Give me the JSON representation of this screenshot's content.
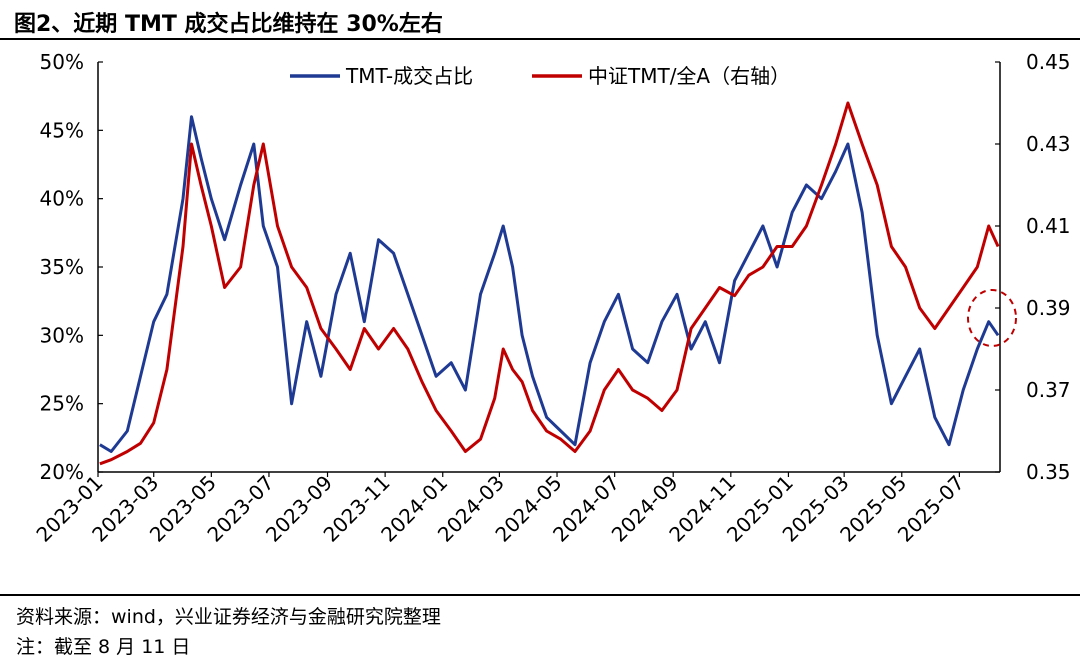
{
  "header": {
    "title": "图2、近期 TMT 成交占比维持在 30%左右"
  },
  "footer": {
    "source": "资料来源：wind，兴业证券经济与金融研究院整理",
    "note": "注：截至 8 月 11 日"
  },
  "colors": {
    "series1": "#1f3a93",
    "series2": "#c00000",
    "axis": "#000000"
  },
  "chart_data": {
    "type": "line",
    "title": "近期 TMT 成交占比维持在 30%左右",
    "legend_position": "top-center",
    "annotation": "dashed red ellipse marking recent TMT share near 30%",
    "x_tick_labels": [
      "2023-01",
      "2023-03",
      "2023-05",
      "2023-07",
      "2023-09",
      "2023-11",
      "2024-01",
      "2024-03",
      "2024-05",
      "2024-07",
      "2024-09",
      "2024-11",
      "2025-01",
      "2025-03",
      "2025-05",
      "2025-07"
    ],
    "y_left": {
      "ticks": [
        "20%",
        "25%",
        "30%",
        "35%",
        "40%",
        "45%",
        "50%"
      ],
      "range": [
        20,
        50
      ]
    },
    "y_right": {
      "ticks": [
        "0.35",
        "0.37",
        "0.39",
        "0.41",
        "0.43",
        "0.45"
      ],
      "range": [
        0.35,
        0.45
      ]
    },
    "series": [
      {
        "name": "TMT-成交占比",
        "axis": "left",
        "x": [
          "2023-01-03",
          "2023-01-15",
          "2023-02-01",
          "2023-02-15",
          "2023-03-01",
          "2023-03-15",
          "2023-04-01",
          "2023-04-10",
          "2023-04-20",
          "2023-05-01",
          "2023-05-15",
          "2023-06-01",
          "2023-06-15",
          "2023-06-25",
          "2023-07-10",
          "2023-07-25",
          "2023-08-10",
          "2023-08-25",
          "2023-09-10",
          "2023-09-25",
          "2023-10-10",
          "2023-10-25",
          "2023-11-10",
          "2023-11-25",
          "2023-12-10",
          "2023-12-25",
          "2024-01-10",
          "2024-01-25",
          "2024-02-10",
          "2024-02-25",
          "2024-03-05",
          "2024-03-15",
          "2024-03-25",
          "2024-04-05",
          "2024-04-20",
          "2024-05-05",
          "2024-05-20",
          "2024-06-05",
          "2024-06-20",
          "2024-07-05",
          "2024-07-20",
          "2024-08-05",
          "2024-08-20",
          "2024-09-05",
          "2024-09-20",
          "2024-10-05",
          "2024-10-20",
          "2024-11-05",
          "2024-11-20",
          "2024-12-05",
          "2024-12-20",
          "2025-01-05",
          "2025-01-20",
          "2025-02-05",
          "2025-02-20",
          "2025-03-05",
          "2025-03-20",
          "2025-04-05",
          "2025-04-20",
          "2025-05-05",
          "2025-05-20",
          "2025-06-05",
          "2025-06-20",
          "2025-07-05",
          "2025-07-20",
          "2025-08-01",
          "2025-08-11"
        ],
        "values": [
          22,
          21.5,
          23,
          27,
          31,
          33,
          40,
          46,
          43,
          40,
          37,
          41,
          44,
          38,
          35,
          25,
          31,
          27,
          33,
          36,
          31,
          37,
          36,
          33,
          30,
          27,
          28,
          26,
          33,
          36,
          38,
          35,
          30,
          27,
          24,
          23,
          22,
          28,
          31,
          33,
          29,
          28,
          31,
          33,
          29,
          31,
          28,
          34,
          36,
          38,
          35,
          39,
          41,
          40,
          42,
          44,
          39,
          30,
          25,
          27,
          29,
          24,
          22,
          26,
          29,
          31,
          30
        ]
      },
      {
        "name": "中证TMT/全A（右轴）",
        "axis": "right",
        "x": [
          "2023-01-03",
          "2023-01-15",
          "2023-02-01",
          "2023-02-15",
          "2023-03-01",
          "2023-03-15",
          "2023-04-01",
          "2023-04-10",
          "2023-04-20",
          "2023-05-01",
          "2023-05-15",
          "2023-06-01",
          "2023-06-15",
          "2023-06-25",
          "2023-07-10",
          "2023-07-25",
          "2023-08-10",
          "2023-08-25",
          "2023-09-10",
          "2023-09-25",
          "2023-10-10",
          "2023-10-25",
          "2023-11-10",
          "2023-11-25",
          "2023-12-10",
          "2023-12-25",
          "2024-01-10",
          "2024-01-25",
          "2024-02-10",
          "2024-02-25",
          "2024-03-05",
          "2024-03-15",
          "2024-03-25",
          "2024-04-05",
          "2024-04-20",
          "2024-05-05",
          "2024-05-20",
          "2024-06-05",
          "2024-06-20",
          "2024-07-05",
          "2024-07-20",
          "2024-08-05",
          "2024-08-20",
          "2024-09-05",
          "2024-09-20",
          "2024-10-05",
          "2024-10-20",
          "2024-11-05",
          "2024-11-20",
          "2024-12-05",
          "2024-12-20",
          "2025-01-05",
          "2025-01-20",
          "2025-02-05",
          "2025-02-20",
          "2025-03-05",
          "2025-03-20",
          "2025-04-05",
          "2025-04-20",
          "2025-05-05",
          "2025-05-20",
          "2025-06-05",
          "2025-06-20",
          "2025-07-05",
          "2025-07-20",
          "2025-08-01",
          "2025-08-11"
        ],
        "values": [
          0.352,
          0.353,
          0.355,
          0.357,
          0.362,
          0.375,
          0.405,
          0.43,
          0.42,
          0.41,
          0.395,
          0.4,
          0.42,
          0.43,
          0.41,
          0.4,
          0.395,
          0.385,
          0.38,
          0.375,
          0.385,
          0.38,
          0.385,
          0.38,
          0.372,
          0.365,
          0.36,
          0.355,
          0.358,
          0.368,
          0.38,
          0.375,
          0.372,
          0.365,
          0.36,
          0.358,
          0.355,
          0.36,
          0.37,
          0.375,
          0.37,
          0.368,
          0.365,
          0.37,
          0.385,
          0.39,
          0.395,
          0.393,
          0.398,
          0.4,
          0.405,
          0.405,
          0.41,
          0.42,
          0.43,
          0.44,
          0.43,
          0.42,
          0.405,
          0.4,
          0.39,
          0.385,
          0.39,
          0.395,
          0.4,
          0.41,
          0.405
        ]
      }
    ]
  }
}
